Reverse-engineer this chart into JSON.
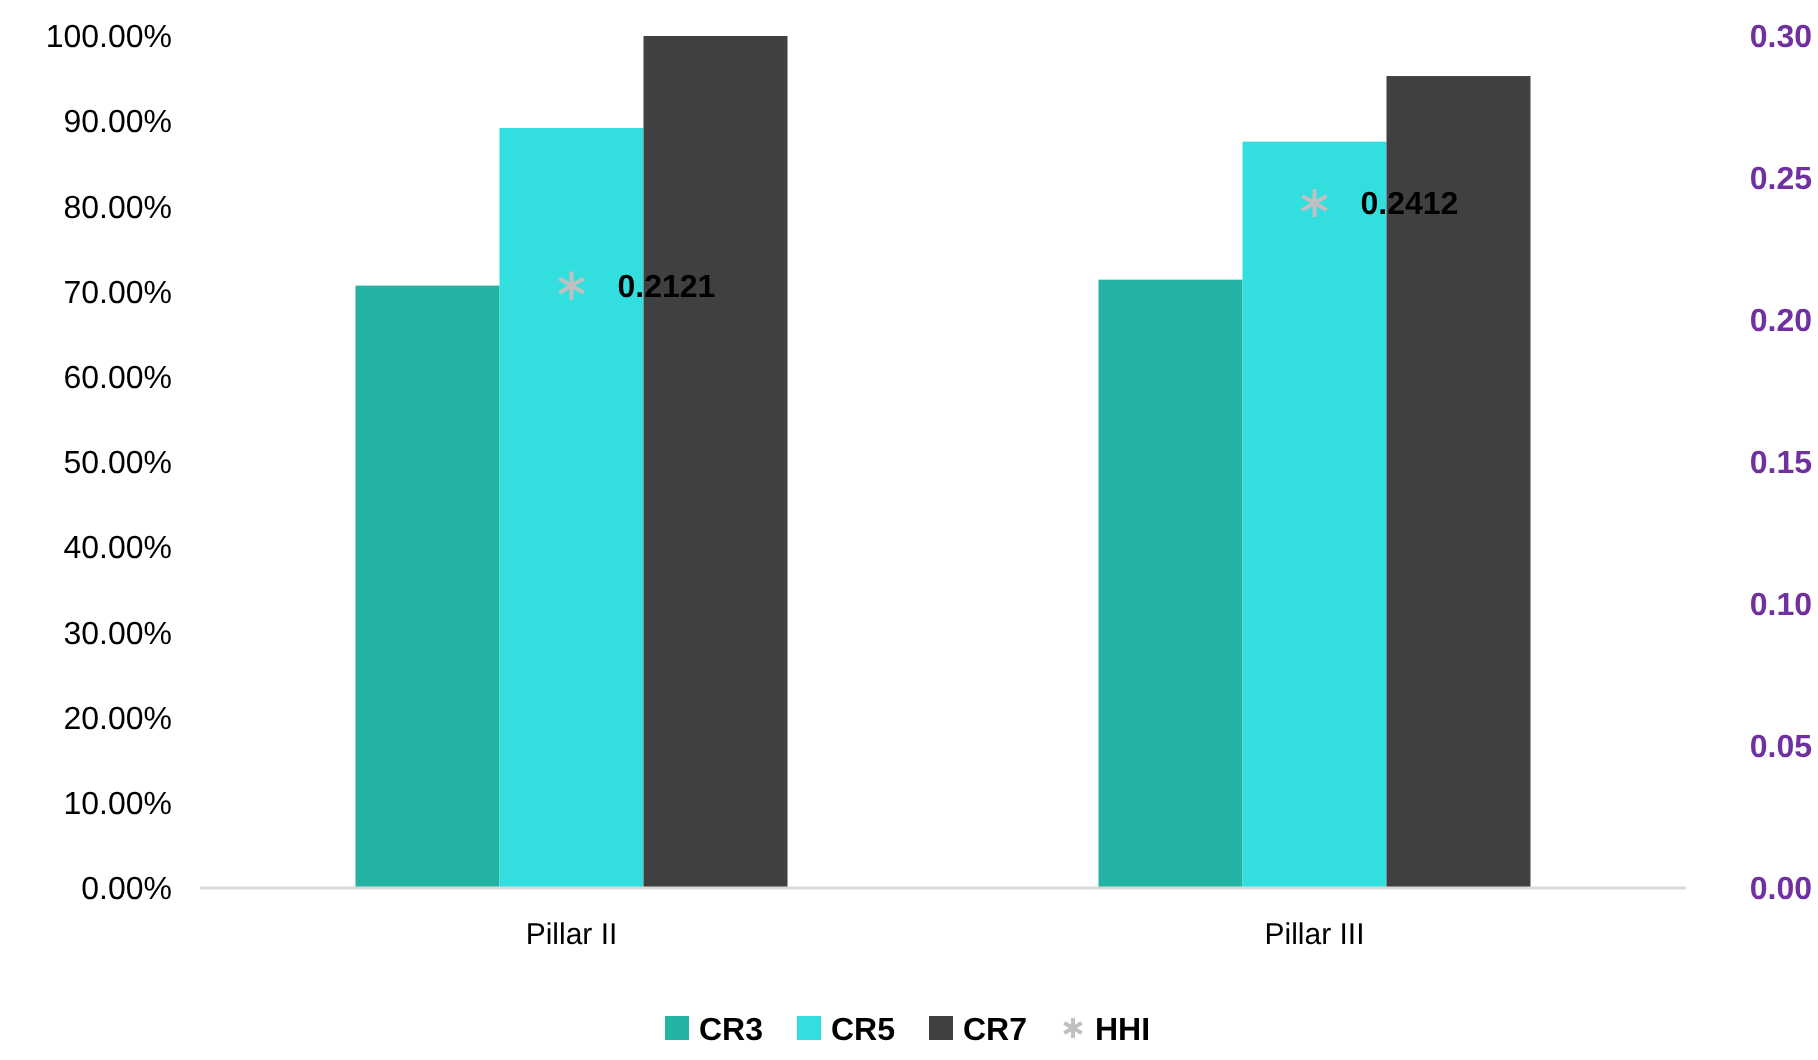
{
  "chart_data": {
    "type": "bar",
    "categories": [
      "Pillar II",
      "Pillar III"
    ],
    "series": [
      {
        "name": "CR3",
        "color": "#22b3a3",
        "values": [
          70.7,
          71.4
        ]
      },
      {
        "name": "CR5",
        "color": "#33dede",
        "values": [
          89.2,
          87.6
        ]
      },
      {
        "name": "CR7",
        "color": "#404040",
        "values": [
          100,
          95.3
        ]
      },
      {
        "name": "HHI",
        "type": "scatter",
        "axis": "y2",
        "color": "#c0c0c0",
        "marker": "cross",
        "x": [
          "Pillar II",
          "Pillar III"
        ],
        "values": [
          0.2121,
          0.2412
        ],
        "value_labels": [
          "0.2121",
          "0.2412"
        ]
      }
    ],
    "ylim": [
      0,
      100
    ],
    "yticks": [
      {
        "value": 0,
        "label": "0.00%"
      },
      {
        "value": 10,
        "label": "10.00%"
      },
      {
        "value": 20,
        "label": "20.00%"
      },
      {
        "value": 30,
        "label": "30.00%"
      },
      {
        "value": 40,
        "label": "40.00%"
      },
      {
        "value": 50,
        "label": "50.00%"
      },
      {
        "value": 60,
        "label": "60.00%"
      },
      {
        "value": 70,
        "label": "70.00%"
      },
      {
        "value": 80,
        "label": "80.00%"
      },
      {
        "value": 90,
        "label": "90.00%"
      },
      {
        "value": 100,
        "label": "100.00%"
      }
    ],
    "y2lim": [
      0,
      0.3
    ],
    "y2ticks": [
      {
        "value": 0,
        "label": "0.00"
      },
      {
        "value": 0.05,
        "label": "0.05"
      },
      {
        "value": 0.1,
        "label": "0.10"
      },
      {
        "value": 0.15,
        "label": "0.15"
      },
      {
        "value": 0.2,
        "label": "0.20"
      },
      {
        "value": 0.25,
        "label": "0.25"
      },
      {
        "value": 0.3,
        "label": "0.30"
      }
    ],
    "grid": false,
    "legend": "bottom"
  }
}
